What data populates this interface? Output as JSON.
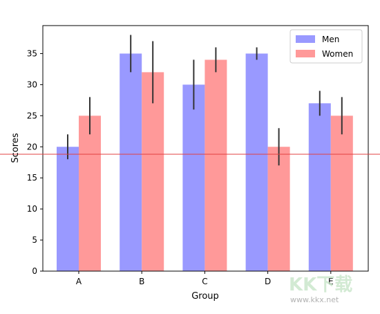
{
  "chart_data": {
    "type": "bar",
    "title": "",
    "xlabel": "Group",
    "ylabel": "Scores",
    "categories": [
      "A",
      "B",
      "C",
      "D",
      "E"
    ],
    "series": [
      {
        "name": "Men",
        "values": [
          20,
          35,
          30,
          35,
          27
        ],
        "errors": [
          2,
          3,
          4,
          1,
          2
        ],
        "color": "#9999ff"
      },
      {
        "name": "Women",
        "values": [
          25,
          32,
          34,
          20,
          25
        ],
        "errors": [
          3,
          5,
          2,
          3,
          3
        ],
        "color": "#ff9999"
      }
    ],
    "ylim": [
      0,
      39.5
    ],
    "yticks": [
      0,
      5,
      10,
      15,
      20,
      25,
      30,
      35
    ],
    "legend_position": "top-right",
    "grid": false,
    "reference_line": {
      "y": 18.8,
      "color": "#e04040"
    },
    "errorbar_color": "#333333"
  },
  "watermark": {
    "logo_text": "KK下载",
    "url": "www.kkx.net"
  }
}
